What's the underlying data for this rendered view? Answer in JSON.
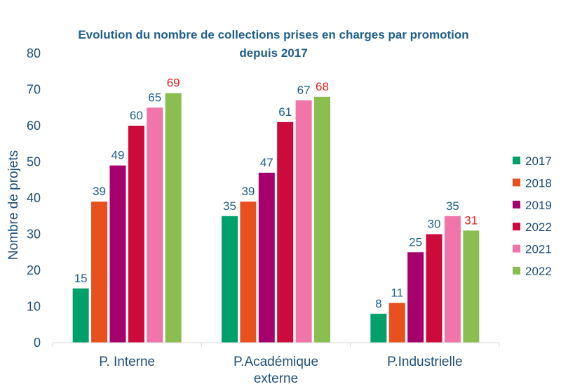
{
  "chart_data": {
    "type": "bar",
    "title_lines": [
      "Evolution du nombre de collections prises en charges par promotion",
      "depuis 2017"
    ],
    "ylabel": "Nombre de projets",
    "xlabel": "",
    "ylim": [
      0,
      80
    ],
    "yticks": [
      0,
      10,
      20,
      30,
      40,
      50,
      60,
      70,
      80
    ],
    "categories": [
      [
        "P. Interne"
      ],
      [
        "P.Académique",
        "externe"
      ],
      [
        "P.Industrielle"
      ]
    ],
    "series": [
      {
        "name": "2017",
        "color": "#00a06b",
        "values": [
          15,
          35,
          8
        ]
      },
      {
        "name": "2018",
        "color": "#e8501e",
        "values": [
          39,
          39,
          11
        ]
      },
      {
        "name": "2019",
        "color": "#a5006b",
        "values": [
          49,
          47,
          25
        ]
      },
      {
        "name": "2022",
        "color": "#cc0a3c",
        "values": [
          60,
          61,
          30
        ]
      },
      {
        "name": "2021",
        "color": "#f075a8",
        "values": [
          65,
          67,
          35
        ]
      },
      {
        "name": "2022",
        "color": "#8bbe50",
        "values": [
          69,
          68,
          31
        ]
      }
    ],
    "label_color": "#1f5f8b",
    "highlight_label_color": "#e3221e",
    "highlight_series_index": 5,
    "legend_position": "right",
    "grid": false
  }
}
